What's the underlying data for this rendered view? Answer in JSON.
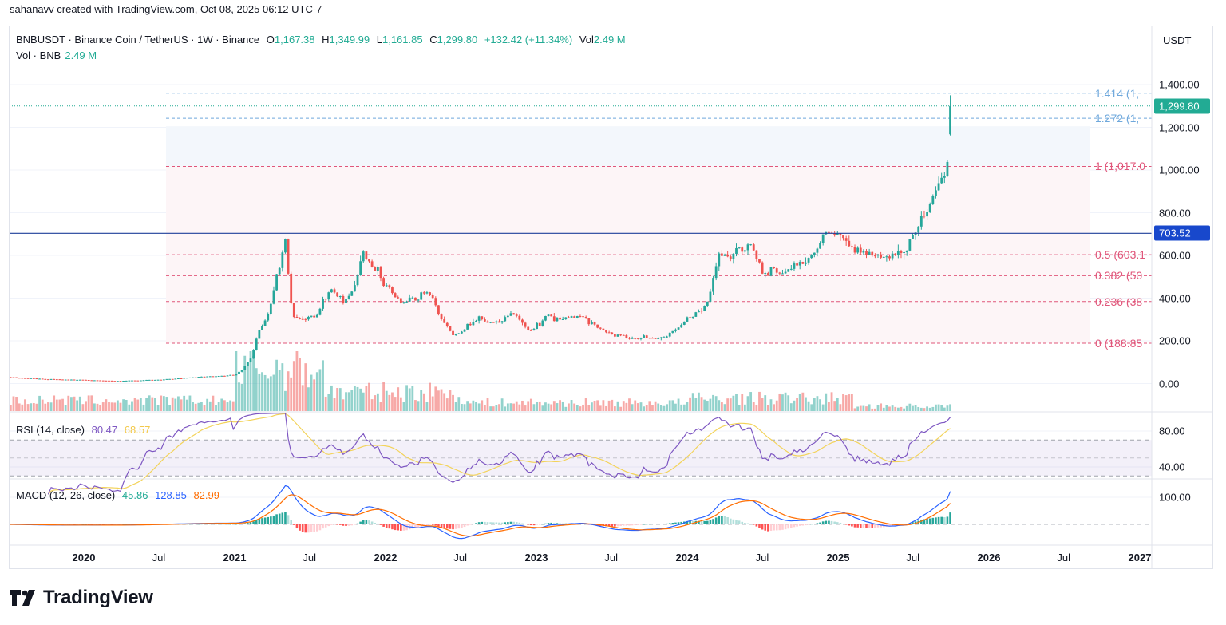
{
  "credit": "sahanavv created with TradingView.com, Oct 08, 2025 06:12 UTC-7",
  "legend": {
    "symbol": "BNBUSDT · Binance Coin / TetherUS · 1W · Binance",
    "o_label": "O",
    "o": "1,167.38",
    "h_label": "H",
    "h": "1,349.99",
    "l_label": "L",
    "l": "1,161.85",
    "c_label": "C",
    "c": "1,299.80",
    "change": "+132.42 (+11.34%)",
    "vol_label": "Vol",
    "vol": "2.49 M",
    "vol_series_label": "Vol · BNB",
    "vol_series_value": "2.49 M"
  },
  "currency": "USDT",
  "logo_text": "TradingView",
  "colors": {
    "up": "#26a69a",
    "down": "#ef5350",
    "hline": "#1e3f9a",
    "hline_badge": "#1848cc",
    "last_price": "#22ab94",
    "fib_upper": "#6fa8dc",
    "fib_lower": "#e0567a",
    "rsi": "#7e57c2",
    "rsi_ma": "#f3d35a",
    "macd": "#2962ff",
    "signal": "#ff6d00"
  },
  "chart_data": {
    "type": "candlestick",
    "interval": "1W",
    "symbol": "BNBUSDT",
    "approx_closes": [
      [
        "2019-07-01",
        30
      ],
      [
        "2019-10-01",
        20
      ],
      [
        "2020-01-01",
        17
      ],
      [
        "2020-03-15",
        12
      ],
      [
        "2020-07-01",
        18
      ],
      [
        "2020-10-01",
        30
      ],
      [
        "2021-01-01",
        40
      ],
      [
        "2021-02-10",
        120
      ],
      [
        "2021-02-25",
        230
      ],
      [
        "2021-03-20",
        300
      ],
      [
        "2021-04-15",
        520
      ],
      [
        "2021-05-05",
        660
      ],
      [
        "2021-05-20",
        330
      ],
      [
        "2021-06-20",
        300
      ],
      [
        "2021-07-20",
        320
      ],
      [
        "2021-08-25",
        480
      ],
      [
        "2021-09-20",
        380
      ],
      [
        "2021-10-20",
        480
      ],
      [
        "2021-11-10",
        630
      ],
      [
        "2021-12-10",
        540
      ],
      [
        "2022-01-25",
        370
      ],
      [
        "2022-03-30",
        430
      ],
      [
        "2022-04-25",
        390
      ],
      [
        "2022-05-15",
        300
      ],
      [
        "2022-06-15",
        220
      ],
      [
        "2022-07-20",
        270
      ],
      [
        "2022-08-15",
        300
      ],
      [
        "2022-09-20",
        275
      ],
      [
        "2022-11-05",
        330
      ],
      [
        "2022-11-25",
        285
      ],
      [
        "2022-12-20",
        245
      ],
      [
        "2023-01-25",
        310
      ],
      [
        "2023-02-20",
        305
      ],
      [
        "2023-04-20",
        330
      ],
      [
        "2023-06-15",
        240
      ],
      [
        "2023-08-20",
        215
      ],
      [
        "2023-10-15",
        212
      ],
      [
        "2023-12-10",
        250
      ],
      [
        "2024-01-05",
        310
      ],
      [
        "2024-02-15",
        360
      ],
      [
        "2024-03-15",
        580
      ],
      [
        "2024-04-20",
        590
      ],
      [
        "2024-06-05",
        680
      ],
      [
        "2024-07-05",
        520
      ],
      [
        "2024-08-10",
        530
      ],
      [
        "2024-09-20",
        570
      ],
      [
        "2024-11-10",
        620
      ],
      [
        "2024-12-05",
        720
      ],
      [
        "2025-01-05",
        690
      ],
      [
        "2025-02-10",
        610
      ],
      [
        "2025-03-15",
        600
      ],
      [
        "2025-04-10",
        580
      ],
      [
        "2025-05-15",
        650
      ],
      [
        "2025-06-20",
        640
      ],
      [
        "2025-07-20",
        760
      ],
      [
        "2025-08-20",
        850
      ],
      [
        "2025-09-20",
        1000
      ],
      [
        "2025-10-06",
        1299.8
      ]
    ],
    "last_candle": {
      "open": 1167.38,
      "high": 1349.99,
      "low": 1161.85,
      "close": 1299.8,
      "change": 132.42,
      "change_pct": 11.34,
      "volume": "2.49M"
    },
    "price_axis": {
      "ticks": [
        "1,400.00",
        "1,200.00",
        "1,000.00",
        "800.00",
        "600.00",
        "400.00",
        "200.00",
        "0.00"
      ],
      "values": [
        1400,
        1200,
        1000,
        800,
        600,
        400,
        200,
        0
      ],
      "range": [
        -5,
        1480
      ]
    },
    "last_price_label": "1,299.80",
    "horizontal_line": {
      "value": 703.52,
      "label": "703.52"
    },
    "fibonacci": [
      {
        "level": "1.414",
        "label": "1.414 (1,",
        "value": 1359.9,
        "group": "upper"
      },
      {
        "level": "1.272",
        "label": "1.272 (1,",
        "value": 1242.3,
        "group": "upper"
      },
      {
        "level": "1",
        "label": "1 (1,017.0",
        "value": 1017.0,
        "group": "lower"
      },
      {
        "level": "0.5",
        "label": "0.5 (603.1",
        "value": 603.1,
        "group": "lower"
      },
      {
        "level": "0.382",
        "label": "0.382 (50",
        "value": 505.2,
        "group": "lower"
      },
      {
        "level": "0.236",
        "label": "0.236 (38",
        "value": 384.3,
        "group": "lower"
      },
      {
        "level": "0",
        "label": "0 (188.85",
        "value": 188.85,
        "group": "lower"
      }
    ],
    "time_axis": [
      {
        "label": "2020",
        "date": "2020-01-01",
        "year": true
      },
      {
        "label": "Jul",
        "date": "2020-07-01"
      },
      {
        "label": "2021",
        "date": "2021-01-01",
        "year": true
      },
      {
        "label": "Jul",
        "date": "2021-07-01"
      },
      {
        "label": "2022",
        "date": "2022-01-01",
        "year": true
      },
      {
        "label": "Jul",
        "date": "2022-07-01"
      },
      {
        "label": "2023",
        "date": "2023-01-01",
        "year": true
      },
      {
        "label": "Jul",
        "date": "2023-07-01"
      },
      {
        "label": "2024",
        "date": "2024-01-01",
        "year": true
      },
      {
        "label": "Jul",
        "date": "2024-07-01"
      },
      {
        "label": "2025",
        "date": "2025-01-01",
        "year": true
      },
      {
        "label": "Jul",
        "date": "2025-07-01"
      },
      {
        "label": "2026",
        "date": "2026-01-01",
        "year": true
      },
      {
        "label": "Jul",
        "date": "2026-07-01"
      },
      {
        "label": "2027",
        "date": "2027-01-01",
        "year": true
      }
    ],
    "rsi": {
      "title": "RSI (14, close)",
      "value": "80.47",
      "ma_value": "68.57",
      "ticks": [
        "80.00",
        "40.00"
      ],
      "bands": [
        70,
        50,
        30
      ]
    },
    "macd": {
      "title": "MACD (12, 26, close)",
      "hist": "45.86",
      "macd": "128.85",
      "signal": "82.99",
      "ticks": [
        "100.00"
      ]
    }
  }
}
